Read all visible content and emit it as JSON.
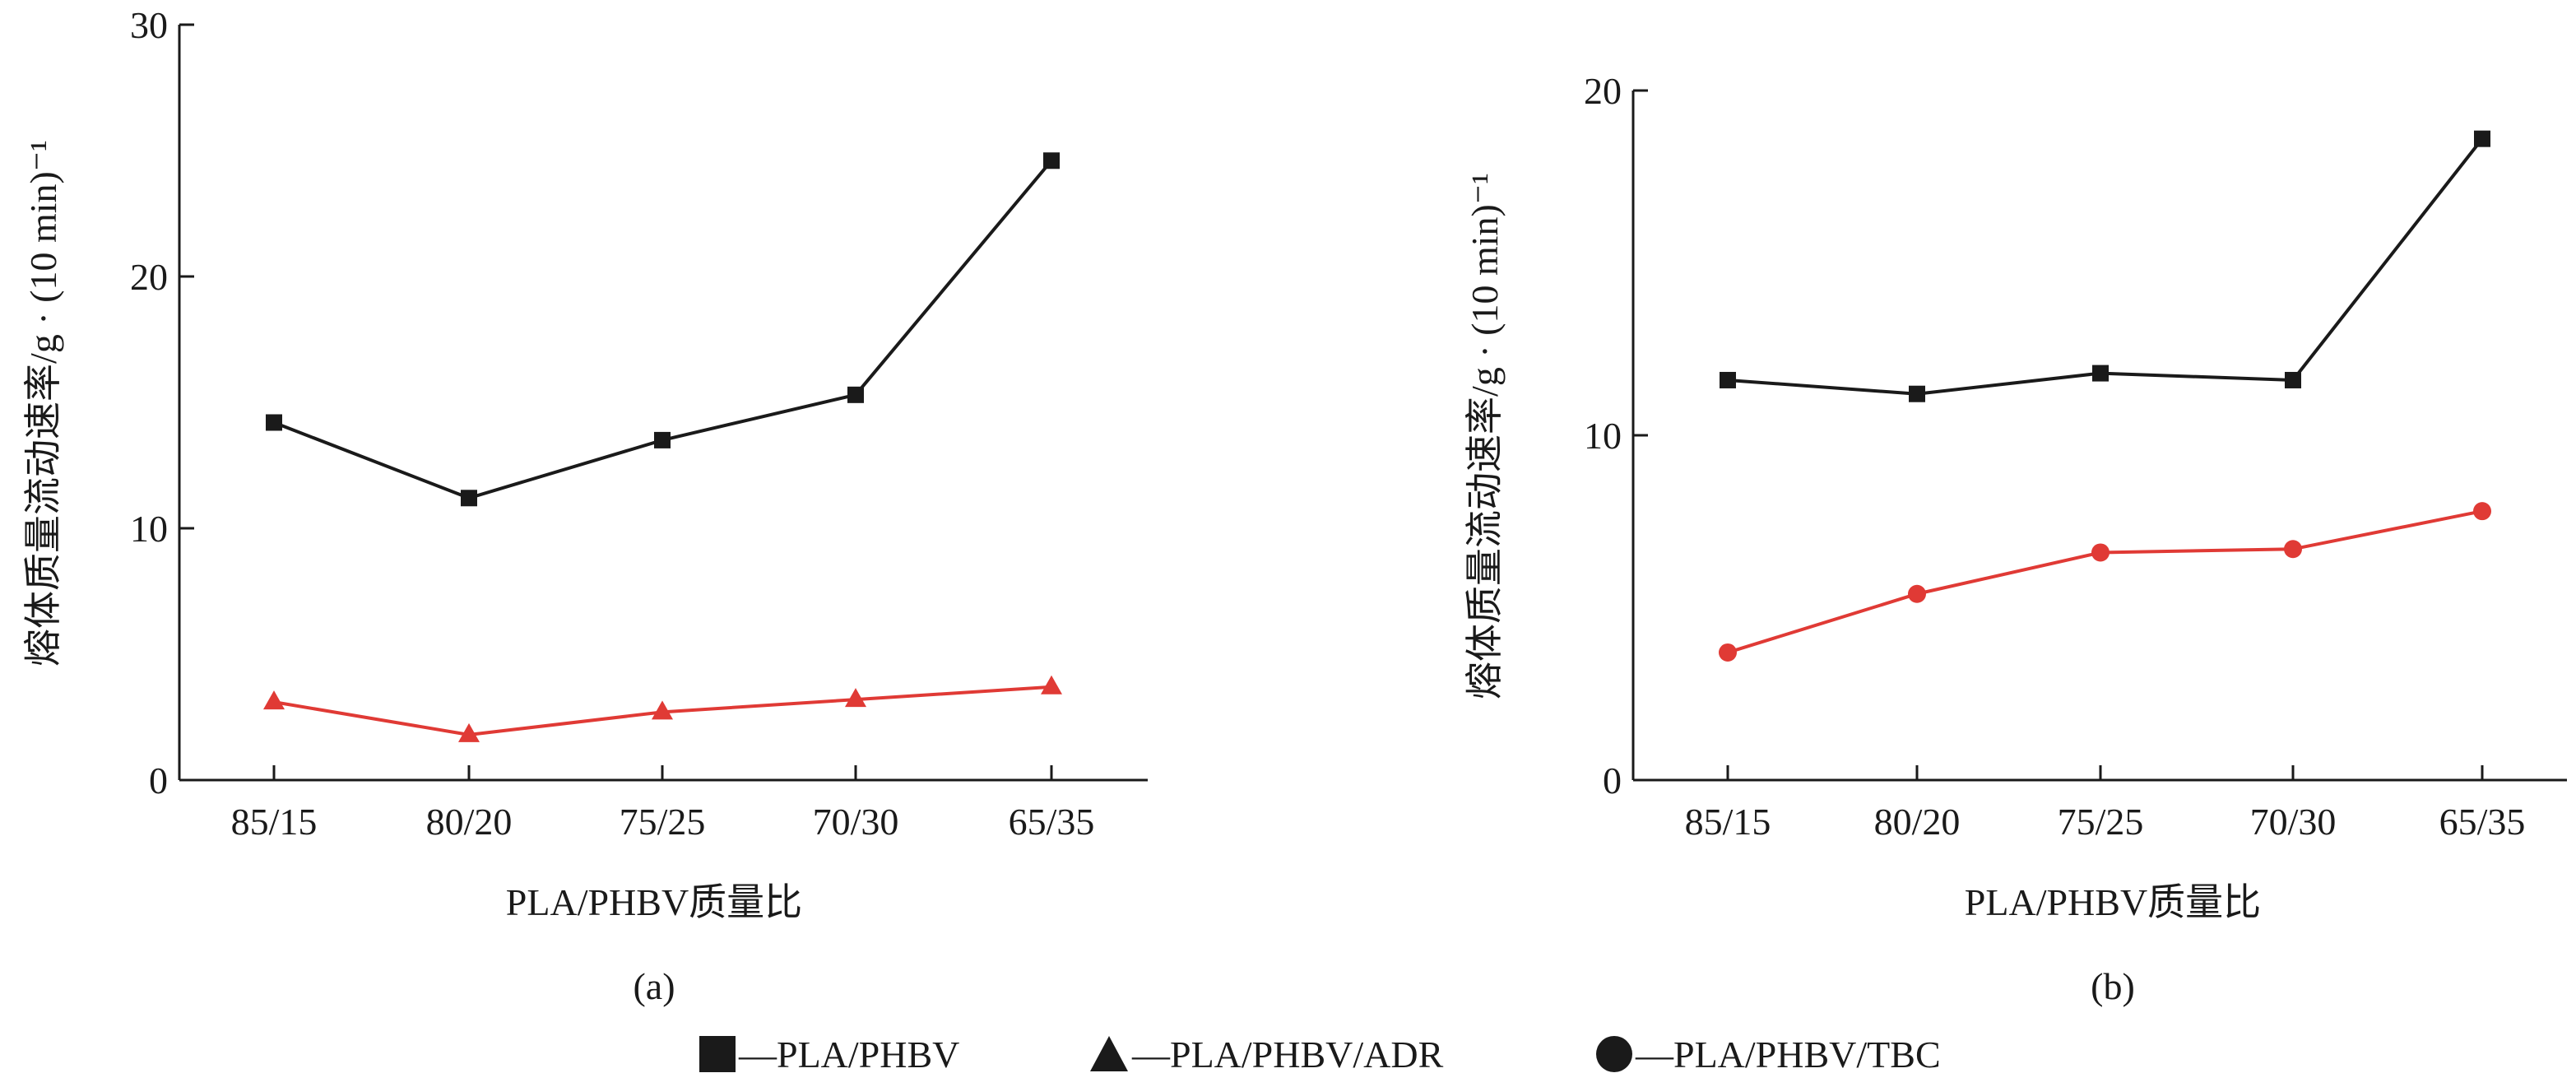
{
  "chart_data": [
    {
      "type": "line",
      "panel_label": "(a)",
      "categories": [
        "85/15",
        "80/20",
        "75/25",
        "70/30",
        "65/35"
      ],
      "xlabel": "PLA/PHBV质量比",
      "ylabel": "熔体质量流动速率/g · (10 min)⁻¹",
      "ylim": [
        0,
        30
      ],
      "yticks": [
        0,
        10,
        20,
        30
      ],
      "grid": false,
      "series": [
        {
          "name": "PLA/PHBV",
          "marker": "square",
          "color": "#1a1a1a",
          "values": [
            14.2,
            11.2,
            13.5,
            15.3,
            24.6
          ]
        },
        {
          "name": "PLA/PHBV/ADR",
          "marker": "triangle",
          "color": "#e03a35",
          "values": [
            3.1,
            1.8,
            2.7,
            3.2,
            3.7
          ]
        }
      ]
    },
    {
      "type": "line",
      "panel_label": "(b)",
      "categories": [
        "85/15",
        "80/20",
        "75/25",
        "70/30",
        "65/35"
      ],
      "xlabel": "PLA/PHBV质量比",
      "ylabel": "熔体质量流动速率/g · (10 min)⁻¹",
      "ylim": [
        0,
        20
      ],
      "yticks": [
        0,
        10,
        20
      ],
      "grid": false,
      "series": [
        {
          "name": "PLA/PHBV",
          "marker": "square",
          "color": "#1a1a1a",
          "values": [
            11.6,
            11.2,
            11.8,
            11.6,
            18.6
          ]
        },
        {
          "name": "PLA/PHBV/TBC",
          "marker": "circle",
          "color": "#e03a35",
          "values": [
            3.7,
            5.4,
            6.6,
            6.7,
            7.8
          ]
        }
      ]
    }
  ],
  "legend": {
    "placement": "bottom",
    "items": [
      {
        "label": "—PLA/PHBV",
        "marker": "square"
      },
      {
        "label": "—PLA/PHBV/ADR",
        "marker": "triangle"
      },
      {
        "label": "—PLA/PHBV/TBC",
        "marker": "circle"
      }
    ]
  }
}
